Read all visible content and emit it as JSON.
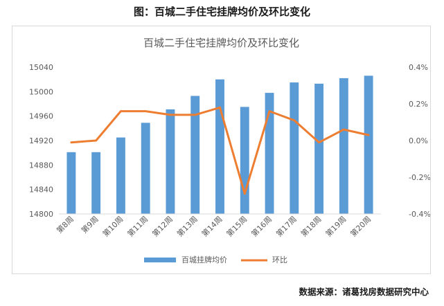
{
  "figure_caption": "图：百城二手住宅挂牌均价及环比变化",
  "source_text": "数据来源：诸葛找房数据研究中心",
  "colors": {
    "bar": "#5b9bd5",
    "line": "#ed7d31",
    "grid": "#d9d9d9",
    "text": "#595959"
  },
  "chart_data": {
    "type": "bar",
    "title": "百城二手住宅挂牌均价及环比变化",
    "categories": [
      "第8周",
      "第9周",
      "第10周",
      "第11周",
      "第12周",
      "第13周",
      "第14周",
      "第15周",
      "第16周",
      "第17周",
      "第18周",
      "第19周",
      "第20周"
    ],
    "series": [
      {
        "name": "百城挂牌均价",
        "type": "bar",
        "axis": "left",
        "values": [
          14901,
          14901,
          14925,
          14949,
          14971,
          14993,
          15020,
          14975,
          14998,
          15015,
          15013,
          15022,
          15026
        ]
      },
      {
        "name": "环比",
        "type": "line",
        "axis": "right",
        "unit": "%",
        "values": [
          -0.01,
          0.0,
          0.16,
          0.16,
          0.14,
          0.14,
          0.18,
          -0.29,
          0.16,
          0.11,
          -0.01,
          0.06,
          0.03
        ]
      }
    ],
    "y_left": {
      "min": 14800,
      "max": 15040,
      "step": 40,
      "tick_labels": [
        "14800",
        "14840",
        "14880",
        "14920",
        "14960",
        "15000",
        "15040"
      ]
    },
    "y_right": {
      "min": -0.4,
      "max": 0.4,
      "step": 0.2,
      "tick_labels": [
        "-0.4%",
        "-0.2%",
        "0.0%",
        "0.2%",
        "0.4%"
      ]
    },
    "grid": false,
    "legend_position": "bottom"
  }
}
